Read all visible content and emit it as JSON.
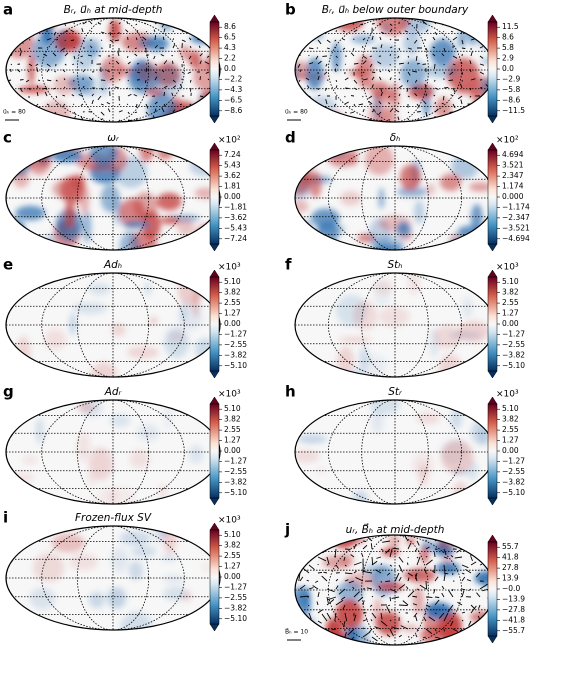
{
  "panels": [
    {
      "letter": "a",
      "title": "Bᵣ, u⃗ₕ at mid-depth",
      "ticks": [
        "8.6",
        "6.5",
        "4.3",
        "2.2",
        "0.0",
        "−2.2",
        "−4.3",
        "−6.5",
        "−8.6"
      ],
      "arrow_scale": "u⃗ₕ = 80"
    },
    {
      "letter": "b",
      "title": "Bᵣ, u⃗ₕ below outer boundary",
      "ticks": [
        "11.5",
        "8.6",
        "5.8",
        "2.9",
        "0.0",
        "−2.9",
        "−5.8",
        "−8.6",
        "−11.5"
      ],
      "arrow_scale": "u⃗ₕ = 80"
    },
    {
      "letter": "c",
      "title": "ωᵣ",
      "multiplier": "×10²",
      "ticks": [
        "7.24",
        "5.43",
        "3.62",
        "1.81",
        "0.00",
        "−1.81",
        "−3.62",
        "−5.43",
        "−7.24"
      ]
    },
    {
      "letter": "d",
      "title": "δₕ",
      "multiplier": "×10²",
      "ticks": [
        "4.694",
        "3.521",
        "2.347",
        "1.174",
        "0.000",
        "−1.174",
        "−2.347",
        "−3.521",
        "−4.694"
      ]
    },
    {
      "letter": "e",
      "title": "Adₕ",
      "multiplier": "×10³",
      "ticks": [
        "5.10",
        "3.82",
        "2.55",
        "1.27",
        "0.00",
        "−1.27",
        "−2.55",
        "−3.82",
        "−5.10"
      ]
    },
    {
      "letter": "f",
      "title": "Stₕ",
      "multiplier": "×10³",
      "ticks": [
        "5.10",
        "3.82",
        "2.55",
        "1.27",
        "0.00",
        "−1.27",
        "−2.55",
        "−3.82",
        "−5.10"
      ]
    },
    {
      "letter": "g",
      "title": "Adᵣ",
      "multiplier": "×10³",
      "ticks": [
        "5.10",
        "3.82",
        "2.55",
        "1.27",
        "0.00",
        "−1.27",
        "−2.55",
        "−3.82",
        "−5.10"
      ]
    },
    {
      "letter": "h",
      "title": "Stᵣ",
      "multiplier": "×10³",
      "ticks": [
        "5.10",
        "3.82",
        "2.55",
        "1.27",
        "0.00",
        "−1.27",
        "−2.55",
        "−3.82",
        "−5.10"
      ]
    },
    {
      "letter": "i",
      "title": "Frozen-flux SV",
      "multiplier": "×10³",
      "ticks": [
        "5.10",
        "3.82",
        "2.55",
        "1.27",
        "0.00",
        "−1.27",
        "−2.55",
        "−3.82",
        "−5.10"
      ]
    },
    {
      "letter": "j",
      "title": "uᵣ, B⃗ₕ at mid-depth",
      "ticks": [
        "55.7",
        "41.8",
        "27.8",
        "13.9",
        "−0.0",
        "−13.9",
        "−27.8",
        "−41.8",
        "−55.7"
      ],
      "arrow_scale": "B⃗ₕ = 10"
    }
  ]
}
